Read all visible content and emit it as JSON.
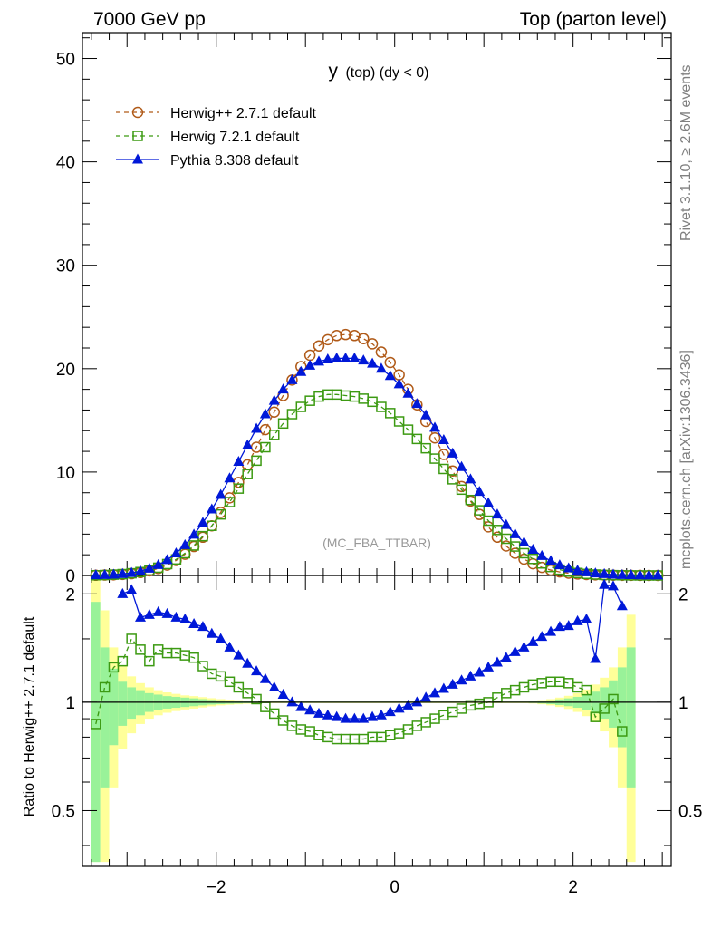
{
  "header": {
    "left_title": "7000 GeV pp",
    "right_title": "Top (parton level)"
  },
  "plot_title": {
    "main": "y",
    "sub": "(top) (dy < 0)"
  },
  "side_labels": {
    "rivet": "Rivet 3.1.10, ≥ 2.6M events",
    "mcplots": "mcplots.cern.ch [arXiv:1306.3436]"
  },
  "watermark": "(MC_FBA_TTBAR)",
  "ratio_ylabel": "Ratio to Herwig++ 2.7.1 default",
  "colors": {
    "herwigpp": "#b05a18",
    "herwig7": "#3c9a12",
    "pythia": "#0018d8",
    "band_yellow": "#ffff99",
    "band_green": "#99f299"
  },
  "legend": [
    {
      "label": "Herwig++ 2.7.1 default",
      "marker": "circle-open",
      "style": "dashed"
    },
    {
      "label": "Herwig 7.2.1 default",
      "marker": "square-open",
      "style": "dashed"
    },
    {
      "label": "Pythia 8.308 default",
      "marker": "triangle-filled",
      "style": "solid"
    }
  ],
  "chart_data": {
    "type": "line",
    "main_panel": {
      "xlim": [
        -3.5,
        3.1
      ],
      "ylim": [
        0,
        52.5
      ],
      "yticks": [
        0,
        10,
        20,
        30,
        40,
        50
      ],
      "ytick_labels": [
        "0",
        "10",
        "20",
        "30",
        "40",
        "50"
      ]
    },
    "ratio_panel": {
      "ylim": [
        0.35,
        2.25
      ],
      "ytick_labels": [
        {
          "v": 2,
          "t": "2"
        },
        {
          "v": 1,
          "t": "1"
        },
        {
          "v": 0.5,
          "t": "0.5"
        }
      ],
      "ylabel": "Ratio to Herwig++ 2.7.1 default"
    },
    "x_axis": {
      "tick_labels": [
        {
          "v": -2,
          "t": "−2"
        },
        {
          "v": 0,
          "t": "0"
        },
        {
          "v": 2,
          "t": "2"
        }
      ]
    },
    "bin_centers": [
      -3.35,
      -3.25,
      -3.15,
      -3.05,
      -2.95,
      -2.85,
      -2.75,
      -2.65,
      -2.55,
      -2.45,
      -2.35,
      -2.25,
      -2.15,
      -2.05,
      -1.95,
      -1.85,
      -1.75,
      -1.65,
      -1.55,
      -1.45,
      -1.35,
      -1.25,
      -1.15,
      -1.05,
      -0.95,
      -0.85,
      -0.75,
      -0.65,
      -0.55,
      -0.45,
      -0.35,
      -0.25,
      -0.15,
      -0.05,
      0.05,
      0.15,
      0.25,
      0.35,
      0.45,
      0.55,
      0.65,
      0.75,
      0.85,
      0.95,
      1.05,
      1.15,
      1.25,
      1.35,
      1.45,
      1.55,
      1.65,
      1.75,
      1.85,
      1.95,
      2.05,
      2.15,
      2.25,
      2.35,
      2.45,
      2.55,
      2.65,
      2.75,
      2.85,
      2.95
    ],
    "series": [
      {
        "name": "Herwig++ 2.7.1 default",
        "values": [
          0.02,
          0.04,
          0.06,
          0.1,
          0.17,
          0.28,
          0.44,
          0.67,
          1.0,
          1.45,
          2.05,
          2.8,
          3.7,
          4.8,
          6.1,
          7.5,
          9.0,
          10.7,
          12.4,
          14.1,
          15.8,
          17.4,
          18.9,
          20.2,
          21.3,
          22.2,
          22.8,
          23.2,
          23.3,
          23.2,
          22.9,
          22.4,
          21.6,
          20.6,
          19.4,
          18.0,
          16.5,
          14.9,
          13.3,
          11.7,
          10.1,
          8.6,
          7.2,
          5.9,
          4.7,
          3.7,
          2.85,
          2.15,
          1.58,
          1.13,
          0.78,
          0.52,
          0.34,
          0.22,
          0.14,
          0.09,
          0.06,
          0.04,
          0.025,
          0.015,
          0.01,
          0.006,
          0.004,
          0.002
        ]
      },
      {
        "name": "Herwig 7.2.1 default",
        "values": [
          0.02,
          0.04,
          0.08,
          0.13,
          0.21,
          0.33,
          0.5,
          0.75,
          1.1,
          1.55,
          2.15,
          2.9,
          3.8,
          4.8,
          5.9,
          7.1,
          8.4,
          9.8,
          11.1,
          12.4,
          13.6,
          14.7,
          15.6,
          16.3,
          16.9,
          17.3,
          17.5,
          17.5,
          17.4,
          17.3,
          17.1,
          16.8,
          16.3,
          15.7,
          14.9,
          14.1,
          13.2,
          12.3,
          11.3,
          10.3,
          9.3,
          8.3,
          7.3,
          6.3,
          5.3,
          4.4,
          3.55,
          2.8,
          2.15,
          1.6,
          1.16,
          0.82,
          0.56,
          0.37,
          0.24,
          0.15,
          0.09,
          0.05,
          0.03,
          0.02,
          0.01,
          0.005,
          0.003,
          0.001
        ]
      },
      {
        "name": "Pythia 8.308 default",
        "values": [
          0.03,
          0.05,
          0.09,
          0.15,
          0.25,
          0.42,
          0.67,
          1.02,
          1.5,
          2.15,
          2.95,
          3.95,
          5.1,
          6.4,
          7.8,
          9.4,
          11.0,
          12.6,
          14.2,
          15.6,
          16.9,
          18.0,
          18.9,
          19.7,
          20.3,
          20.7,
          20.9,
          21.0,
          21.0,
          21.0,
          20.8,
          20.5,
          20.0,
          19.3,
          18.5,
          17.6,
          16.6,
          15.5,
          14.3,
          13.1,
          11.8,
          10.5,
          9.3,
          8.1,
          7.0,
          5.9,
          4.9,
          4.0,
          3.2,
          2.5,
          1.9,
          1.4,
          1.0,
          0.7,
          0.48,
          0.32,
          0.21,
          0.14,
          0.09,
          0.06,
          0.04,
          0.02,
          0.015,
          0.01
        ]
      }
    ],
    "ratio_series": [
      {
        "name": "Herwig 7.2.1 default",
        "x": [
          -3.35,
          -3.25,
          -3.15,
          -3.05,
          -2.95,
          -2.85,
          -2.75,
          -2.65,
          -2.55,
          -2.45,
          -2.35,
          -2.25,
          -2.15,
          -2.05,
          -1.95,
          -1.85,
          -1.75,
          -1.65,
          -1.55,
          -1.45,
          -1.35,
          -1.25,
          -1.15,
          -1.05,
          -0.95,
          -0.85,
          -0.75,
          -0.65,
          -0.55,
          -0.45,
          -0.35,
          -0.25,
          -0.15,
          -0.05,
          0.05,
          0.15,
          0.25,
          0.35,
          0.45,
          0.55,
          0.65,
          0.75,
          0.85,
          0.95,
          1.05,
          1.15,
          1.25,
          1.35,
          1.45,
          1.55,
          1.65,
          1.75,
          1.85,
          1.95,
          2.05,
          2.15,
          2.25,
          2.35,
          2.45,
          2.55
        ],
        "values": [
          0.87,
          1.1,
          1.25,
          1.3,
          1.5,
          1.4,
          1.3,
          1.4,
          1.37,
          1.37,
          1.35,
          1.33,
          1.26,
          1.2,
          1.18,
          1.14,
          1.1,
          1.06,
          1.02,
          0.97,
          0.93,
          0.89,
          0.86,
          0.84,
          0.83,
          0.81,
          0.8,
          0.79,
          0.79,
          0.79,
          0.79,
          0.8,
          0.8,
          0.81,
          0.82,
          0.84,
          0.86,
          0.88,
          0.9,
          0.92,
          0.94,
          0.96,
          0.98,
          0.99,
          1.0,
          1.03,
          1.06,
          1.08,
          1.1,
          1.12,
          1.13,
          1.14,
          1.14,
          1.13,
          1.1,
          1.08,
          0.91,
          0.96,
          1.02,
          0.83
        ]
      },
      {
        "name": "Pythia 8.308 default",
        "x": [
          -3.05,
          -2.95,
          -2.85,
          -2.75,
          -2.65,
          -2.55,
          -2.45,
          -2.35,
          -2.25,
          -2.15,
          -2.05,
          -1.95,
          -1.85,
          -1.75,
          -1.65,
          -1.55,
          -1.45,
          -1.35,
          -1.25,
          -1.15,
          -1.05,
          -0.95,
          -0.85,
          -0.75,
          -0.65,
          -0.55,
          -0.45,
          -0.35,
          -0.25,
          -0.15,
          -0.05,
          0.05,
          0.15,
          0.25,
          0.35,
          0.45,
          0.55,
          0.65,
          0.75,
          0.85,
          0.95,
          1.05,
          1.15,
          1.25,
          1.35,
          1.45,
          1.55,
          1.65,
          1.75,
          1.85,
          1.95,
          2.05,
          2.15,
          2.25,
          2.35,
          2.45,
          2.55
        ],
        "values": [
          2.0,
          2.05,
          1.72,
          1.75,
          1.78,
          1.76,
          1.72,
          1.7,
          1.65,
          1.62,
          1.55,
          1.5,
          1.42,
          1.35,
          1.28,
          1.22,
          1.16,
          1.1,
          1.05,
          1.0,
          0.97,
          0.95,
          0.93,
          0.92,
          0.91,
          0.9,
          0.9,
          0.9,
          0.91,
          0.92,
          0.94,
          0.96,
          0.98,
          1.0,
          1.03,
          1.06,
          1.09,
          1.12,
          1.15,
          1.18,
          1.21,
          1.25,
          1.29,
          1.33,
          1.38,
          1.42,
          1.47,
          1.52,
          1.57,
          1.62,
          1.63,
          1.68,
          1.7,
          1.32,
          2.12,
          2.1,
          1.85
        ]
      }
    ],
    "uncertainty_band": {
      "x_edges": [
        -3.4,
        -3.3,
        -3.2,
        -3.1,
        -3.0,
        -2.9,
        -2.8,
        -2.7,
        -2.6,
        -2.5,
        -2.4,
        -2.3,
        -2.2,
        -2.1,
        -2.0,
        -1.9,
        -1.8,
        -1.7,
        -1.6,
        -1.5,
        1.5,
        1.6,
        1.7,
        1.8,
        1.9,
        2.0,
        2.1,
        2.2,
        2.3,
        2.4,
        2.5,
        2.6,
        2.7
      ],
      "green_half_width": [
        0.9,
        0.42,
        0.24,
        0.14,
        0.1,
        0.08,
        0.06,
        0.05,
        0.04,
        0.035,
        0.03,
        0.025,
        0.02,
        0.015,
        0.012,
        0.01,
        0.008,
        0.006,
        0.005,
        0.004,
        0.005,
        0.008,
        0.012,
        0.018,
        0.025,
        0.035,
        0.05,
        0.07,
        0.1,
        0.15,
        0.25,
        0.42
      ],
      "yellow_half_width": [
        1.4,
        0.8,
        0.42,
        0.26,
        0.18,
        0.13,
        0.1,
        0.08,
        0.065,
        0.055,
        0.045,
        0.04,
        0.033,
        0.026,
        0.02,
        0.016,
        0.013,
        0.01,
        0.008,
        0.006,
        0.008,
        0.013,
        0.02,
        0.03,
        0.042,
        0.06,
        0.085,
        0.12,
        0.17,
        0.25,
        0.42,
        0.75
      ]
    }
  }
}
